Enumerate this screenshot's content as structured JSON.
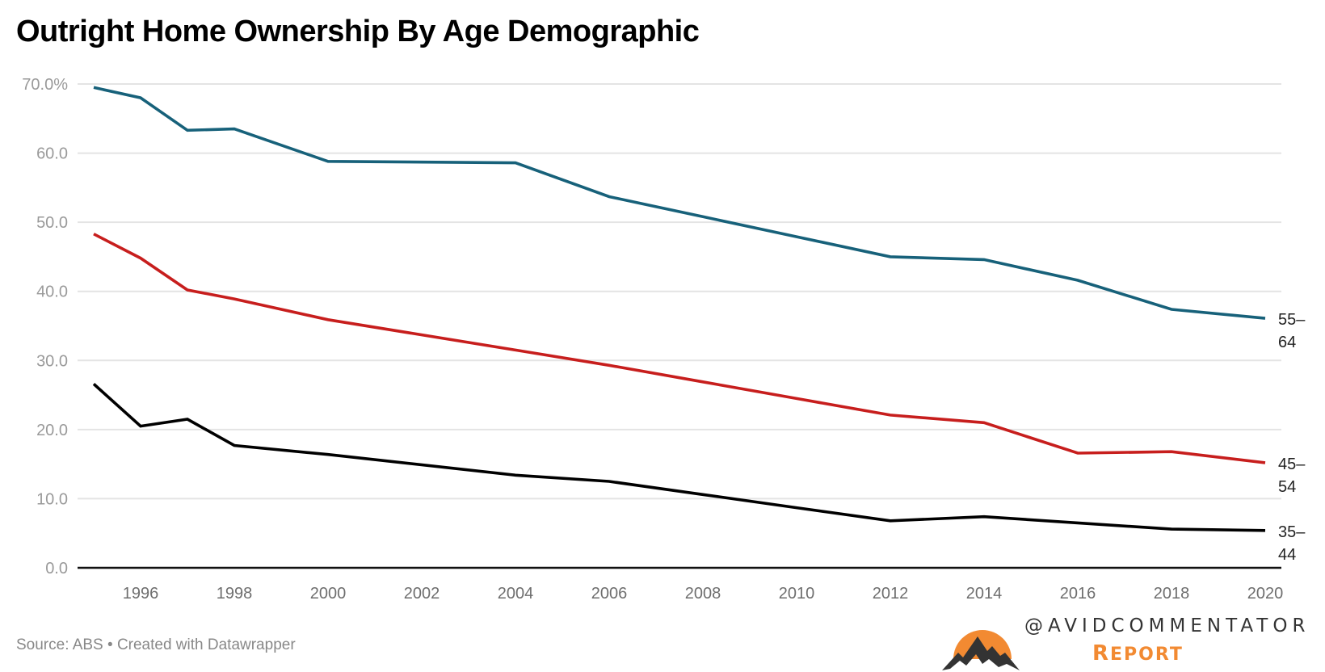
{
  "title": "Outright Home Ownership By Age Demographic",
  "footer": "Source: ABS • Created with Datawrapper",
  "logo": {
    "handle": "@AVIDCOMMENTATOR",
    "report_first": "R",
    "report_rest": "EPORT",
    "sun_color": "#f28a32",
    "mountain_color": "#333333",
    "icon": "sun-mountain-logo-icon"
  },
  "chart_data": {
    "type": "line",
    "title": "Outright Home Ownership By Age Demographic",
    "xlabel": "",
    "ylabel": "",
    "x": [
      1995,
      1996,
      1997,
      1998,
      2000,
      2004,
      2006,
      2008,
      2010,
      2012,
      2014,
      2016,
      2018,
      2020
    ],
    "series": [
      {
        "name": "55–64",
        "label_lines": [
          "55–",
          "64"
        ],
        "color": "#17617a",
        "values": [
          69.5,
          68.0,
          63.3,
          63.5,
          58.8,
          58.6,
          53.7,
          50.8,
          47.9,
          45.0,
          44.6,
          41.6,
          37.4,
          36.1
        ]
      },
      {
        "name": "45–54",
        "label_lines": [
          "45–",
          "54"
        ],
        "color": "#c71e1d",
        "values": [
          48.3,
          44.8,
          40.2,
          38.9,
          35.9,
          31.5,
          29.3,
          26.9,
          24.5,
          22.1,
          21.0,
          16.6,
          16.8,
          15.2
        ]
      },
      {
        "name": "35–44",
        "label_lines": [
          "35–",
          "44"
        ],
        "color": "#000000",
        "values": [
          26.6,
          20.5,
          21.5,
          17.7,
          16.4,
          13.4,
          12.5,
          10.6,
          8.7,
          6.8,
          7.4,
          6.5,
          5.6,
          5.4
        ]
      }
    ],
    "yticks": [
      {
        "value": 0,
        "label": "0.0"
      },
      {
        "value": 10,
        "label": "10.0"
      },
      {
        "value": 20,
        "label": "20.0"
      },
      {
        "value": 30,
        "label": "30.0"
      },
      {
        "value": 40,
        "label": "40.0"
      },
      {
        "value": 50,
        "label": "50.0"
      },
      {
        "value": 60,
        "label": "60.0"
      },
      {
        "value": 70,
        "label": "70.0%"
      }
    ],
    "xticks": [
      1996,
      1998,
      2000,
      2002,
      2004,
      2006,
      2008,
      2010,
      2012,
      2014,
      2016,
      2018,
      2020
    ],
    "xlim": [
      1995,
      2020
    ],
    "ylim": [
      0,
      70
    ],
    "grid": true,
    "legend": "inline-right"
  }
}
